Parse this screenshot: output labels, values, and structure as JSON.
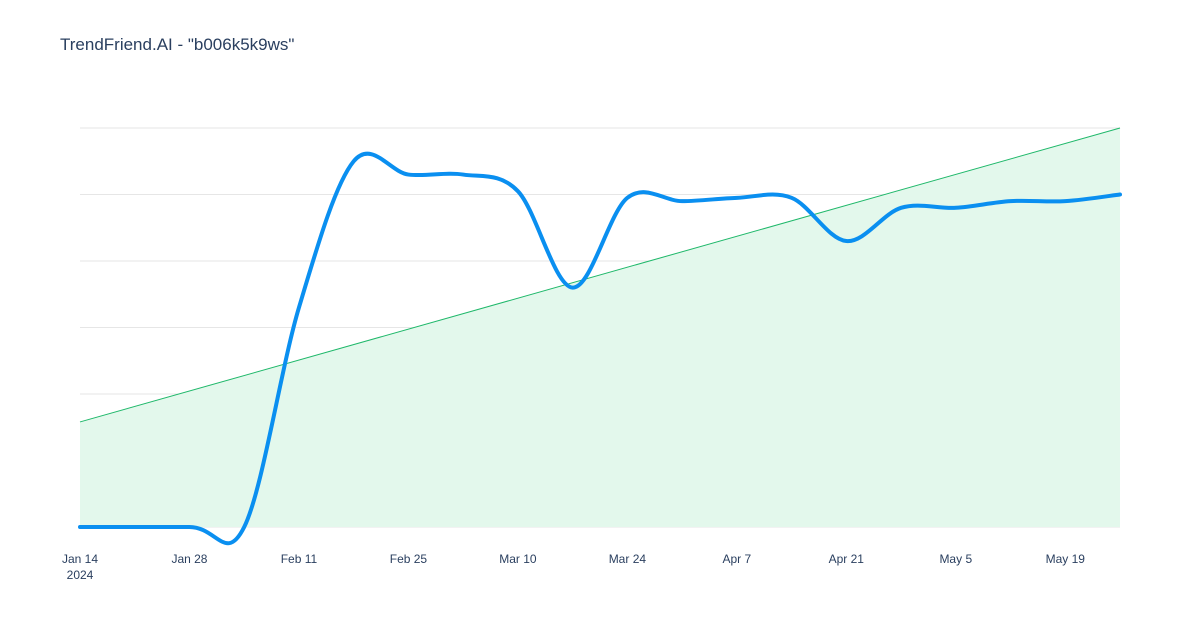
{
  "chart_data": {
    "type": "line",
    "title": "TrendFriend.AI - \"b006k5k9ws\"",
    "xlabel": "",
    "ylabel": "",
    "x_range": [
      "2024-01-14",
      "2024-05-26"
    ],
    "y_range": [
      0,
      6
    ],
    "grid": {
      "x": false,
      "y": true,
      "y_lines": 7
    },
    "x_ticks": [
      {
        "date": "2024-01-14",
        "label": "Jan 14",
        "sublabel": "2024"
      },
      {
        "date": "2024-01-28",
        "label": "Jan 28",
        "sublabel": ""
      },
      {
        "date": "2024-02-11",
        "label": "Feb 11",
        "sublabel": ""
      },
      {
        "date": "2024-02-25",
        "label": "Feb 25",
        "sublabel": ""
      },
      {
        "date": "2024-03-10",
        "label": "Mar 10",
        "sublabel": ""
      },
      {
        "date": "2024-03-24",
        "label": "Mar 24",
        "sublabel": ""
      },
      {
        "date": "2024-04-07",
        "label": "Apr 7",
        "sublabel": ""
      },
      {
        "date": "2024-04-21",
        "label": "Apr 21",
        "sublabel": ""
      },
      {
        "date": "2024-05-05",
        "label": "May 5",
        "sublabel": ""
      },
      {
        "date": "2024-05-19",
        "label": "May 19",
        "sublabel": ""
      }
    ],
    "series": [
      {
        "kind": "line",
        "color": "#0a8ff0",
        "points": [
          [
            "2024-01-14",
            0
          ],
          [
            "2024-01-28",
            0
          ],
          [
            "2024-02-04",
            0
          ],
          [
            "2024-02-11",
            3.3
          ],
          [
            "2024-02-18",
            5.5
          ],
          [
            "2024-02-25",
            5.3
          ],
          [
            "2024-03-03",
            5.3
          ],
          [
            "2024-03-10",
            5.05
          ],
          [
            "2024-03-17",
            3.6
          ],
          [
            "2024-03-24",
            4.95
          ],
          [
            "2024-03-31",
            4.9
          ],
          [
            "2024-04-07",
            4.95
          ],
          [
            "2024-04-14",
            4.95
          ],
          [
            "2024-04-21",
            4.3
          ],
          [
            "2024-04-28",
            4.8
          ],
          [
            "2024-05-05",
            4.8
          ],
          [
            "2024-05-12",
            4.9
          ],
          [
            "2024-05-19",
            4.9
          ],
          [
            "2024-05-26",
            5.0
          ]
        ]
      },
      {
        "kind": "trend-area",
        "line_color": "#1fb86a",
        "fill_color": "#e3f8ec",
        "points": [
          [
            "2024-01-14",
            1.58
          ],
          [
            "2024-05-26",
            6.0
          ]
        ]
      }
    ]
  }
}
